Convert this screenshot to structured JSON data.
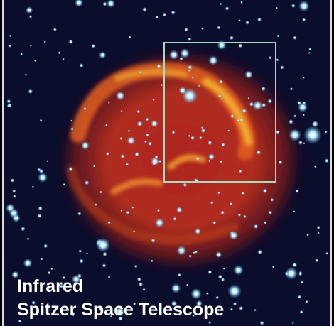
{
  "caption": {
    "line1": "Infrared",
    "line2": "Spitzer Space Telescope"
  }
}
